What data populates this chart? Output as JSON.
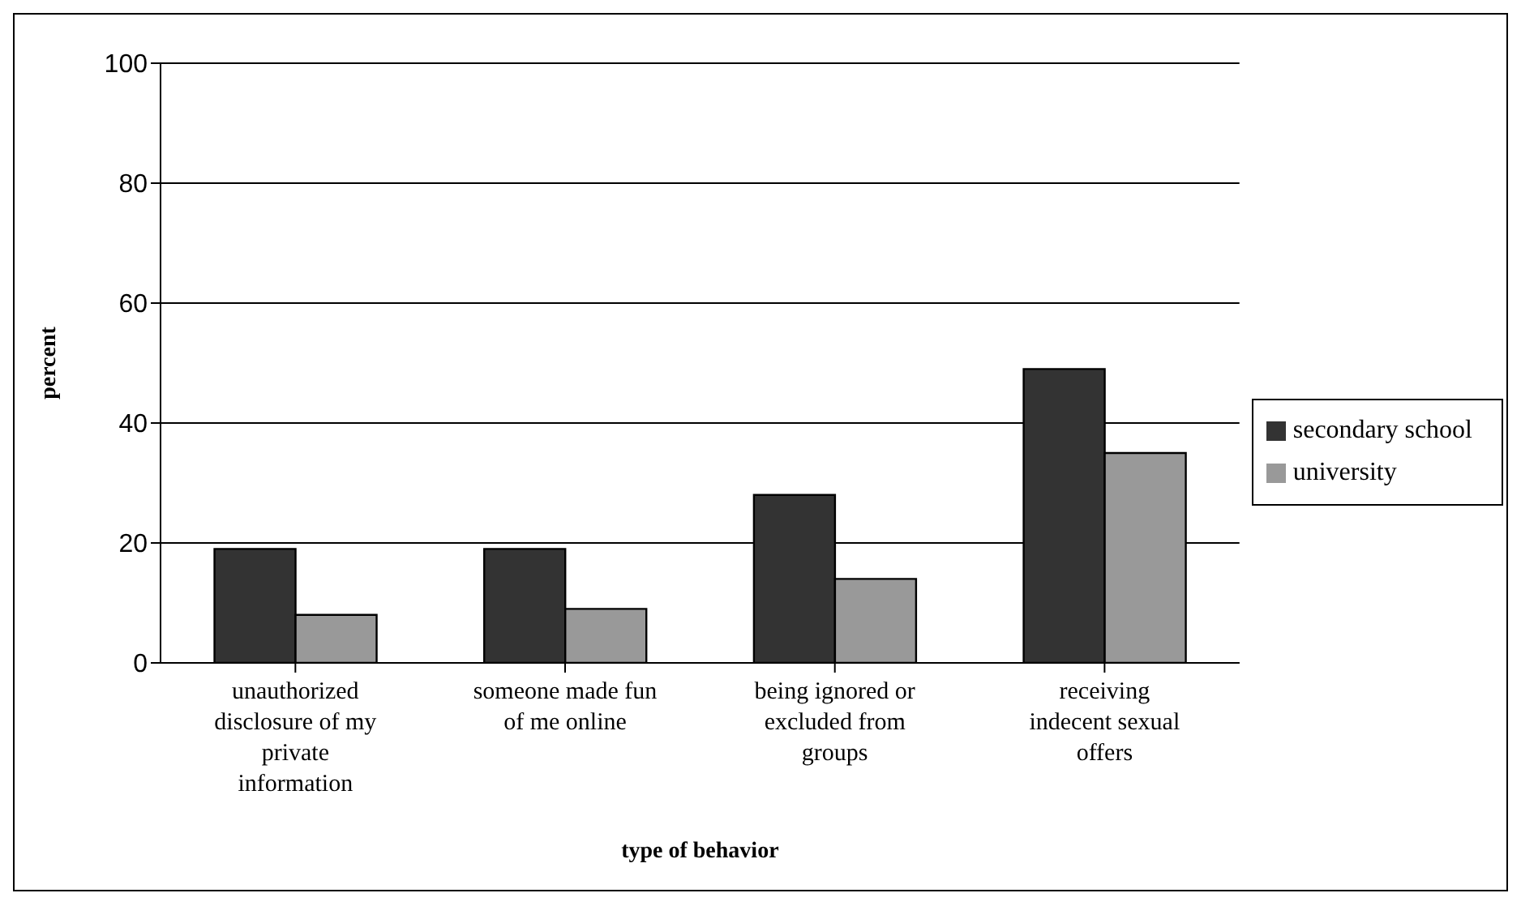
{
  "chart_data": {
    "type": "bar",
    "xlabel": "type of behavior",
    "ylabel": "percent",
    "categories": [
      "unauthorized disclosure of my private information",
      "someone made fun of me online",
      "being ignored or excluded from groups",
      "receiving indecent sexual offers"
    ],
    "series": [
      {
        "name": "secondary school",
        "color": "#333333",
        "values": [
          19,
          19,
          28,
          49
        ]
      },
      {
        "name": "university",
        "color": "#999999",
        "values": [
          8,
          9,
          14,
          35
        ]
      }
    ],
    "ylim": [
      0,
      100
    ],
    "yticks": [
      0,
      20,
      40,
      60,
      80,
      100
    ],
    "grid": "y",
    "legend": "right"
  }
}
